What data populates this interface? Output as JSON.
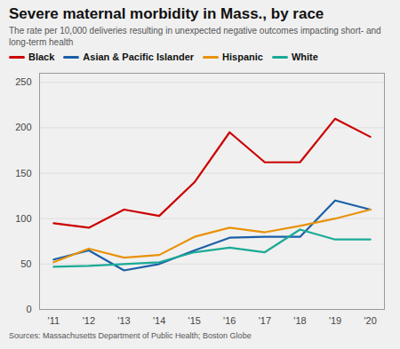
{
  "chart_data": {
    "type": "line",
    "title": "Severe maternal morbidity in Mass., by race",
    "subtitle": "The rate per 10,000 deliveries resulting in unexpected negative outcomes impacting short- and long-term health",
    "source": "Sources: Massachusetts Department of Public Health; Boston Globe",
    "x": [
      2011,
      2012,
      2013,
      2014,
      2015,
      2016,
      2017,
      2018,
      2019,
      2020
    ],
    "xlim": [
      2010.6,
      2020.4
    ],
    "xticks": [
      {
        "value": 2011,
        "label": "'11"
      },
      {
        "value": 2012,
        "label": "'12"
      },
      {
        "value": 2013,
        "label": "'13"
      },
      {
        "value": 2014,
        "label": "'14"
      },
      {
        "value": 2015,
        "label": "'15"
      },
      {
        "value": 2016,
        "label": "'16"
      },
      {
        "value": 2017,
        "label": "'17"
      },
      {
        "value": 2018,
        "label": "'18"
      },
      {
        "value": 2019,
        "label": "'19"
      },
      {
        "value": 2020,
        "label": "'20"
      }
    ],
    "ylim": [
      0,
      260
    ],
    "yticks": [
      0,
      50,
      100,
      150,
      200,
      250
    ],
    "grid": true,
    "legend": "top",
    "series": [
      {
        "name": "Black",
        "color": "#cc0000",
        "values": [
          95,
          90,
          110,
          103,
          140,
          195,
          162,
          162,
          210,
          190
        ]
      },
      {
        "name": "Asian & Pacific Islander",
        "color": "#1a5fa8",
        "values": [
          55,
          65,
          43,
          50,
          65,
          79,
          80,
          80,
          120,
          110
        ]
      },
      {
        "name": "Hispanic",
        "color": "#e8920a",
        "values": [
          52,
          67,
          57,
          60,
          80,
          90,
          85,
          92,
          100,
          110
        ]
      },
      {
        "name": "White",
        "color": "#1aaa96",
        "values": [
          47,
          48,
          50,
          52,
          63,
          68,
          63,
          88,
          77,
          77
        ]
      }
    ]
  }
}
